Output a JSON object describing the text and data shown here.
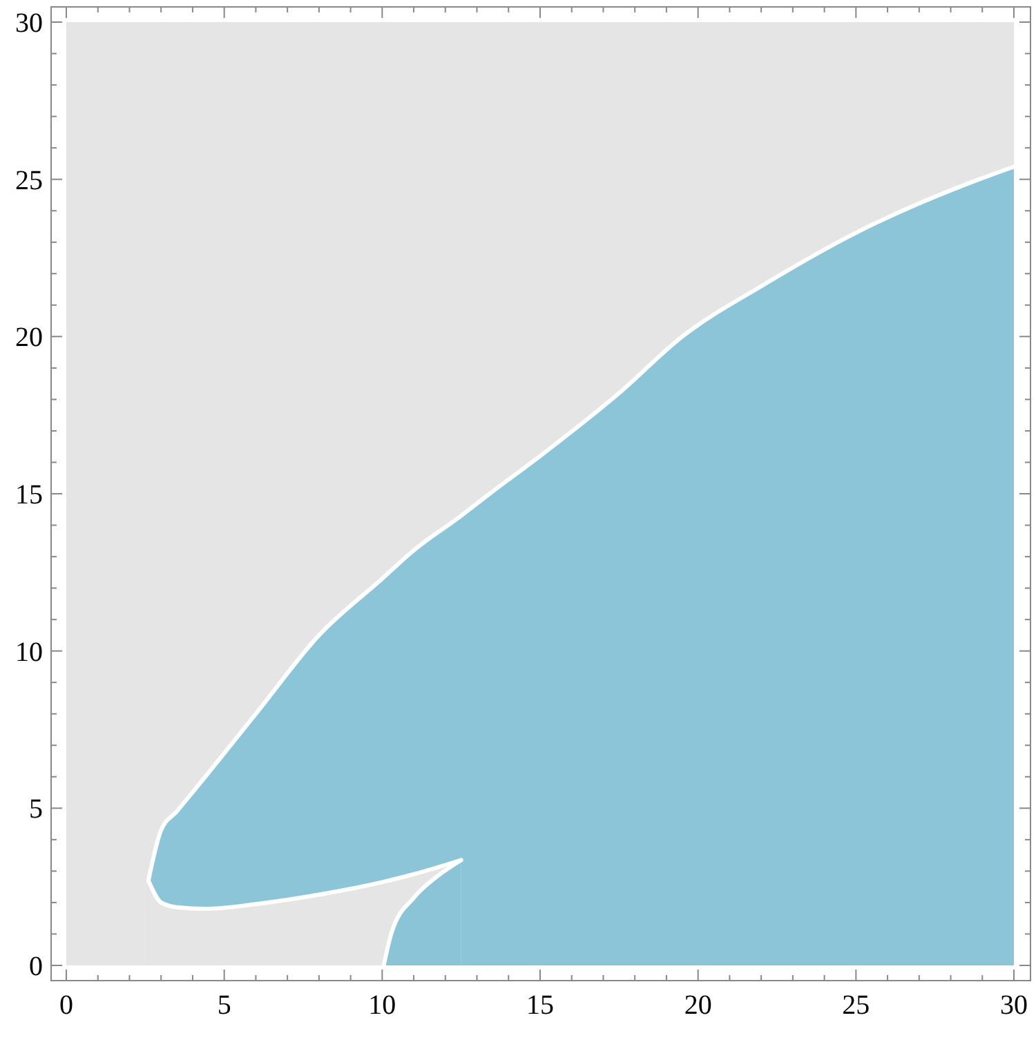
{
  "chart_data": {
    "type": "area",
    "xlim": [
      0,
      30
    ],
    "ylim": [
      0,
      30
    ],
    "xticks": [
      0,
      {
        "value": 1,
        "label": null
      },
      {
        "value": 2,
        "label": null
      },
      {
        "value": 3,
        "label": null
      },
      {
        "value": 4,
        "label": null
      },
      5,
      {
        "value": 6,
        "label": null
      },
      {
        "value": 7,
        "label": null
      },
      {
        "value": 8,
        "label": null
      },
      {
        "value": 9,
        "label": null
      },
      10,
      {
        "value": 11,
        "label": null
      },
      {
        "value": 12,
        "label": null
      },
      {
        "value": 13,
        "label": null
      },
      {
        "value": 14,
        "label": null
      },
      15,
      {
        "value": 16,
        "label": null
      },
      {
        "value": 17,
        "label": null
      },
      {
        "value": 18,
        "label": null
      },
      {
        "value": 19,
        "label": null
      },
      20,
      {
        "value": 21,
        "label": null
      },
      {
        "value": 22,
        "label": null
      },
      {
        "value": 23,
        "label": null
      },
      {
        "value": 24,
        "label": null
      },
      25,
      {
        "value": 26,
        "label": null
      },
      {
        "value": 27,
        "label": null
      },
      {
        "value": 28,
        "label": null
      },
      {
        "value": 29,
        "label": null
      },
      30
    ],
    "yticks": [
      0,
      {
        "value": 1,
        "label": null
      },
      {
        "value": 2,
        "label": null
      },
      {
        "value": 3,
        "label": null
      },
      {
        "value": 4,
        "label": null
      },
      5,
      {
        "value": 6,
        "label": null
      },
      {
        "value": 7,
        "label": null
      },
      {
        "value": 8,
        "label": null
      },
      {
        "value": 9,
        "label": null
      },
      10,
      {
        "value": 11,
        "label": null
      },
      {
        "value": 12,
        "label": null
      },
      {
        "value": 13,
        "label": null
      },
      {
        "value": 14,
        "label": null
      },
      15,
      {
        "value": 16,
        "label": null
      },
      {
        "value": 17,
        "label": null
      },
      {
        "value": 18,
        "label": null
      },
      {
        "value": 19,
        "label": null
      },
      20,
      {
        "value": 21,
        "label": null
      },
      {
        "value": 22,
        "label": null
      },
      {
        "value": 23,
        "label": null
      },
      {
        "value": 24,
        "label": null
      },
      25,
      {
        "value": 26,
        "label": null
      },
      {
        "value": 27,
        "label": null
      },
      {
        "value": 28,
        "label": null
      },
      {
        "value": 29,
        "label": null
      },
      30
    ],
    "grid": false,
    "series": [
      {
        "color": "#8cc4d8",
        "x": [
          2.6,
          3,
          3.5,
          4.4,
          6,
          8,
          10,
          11,
          12.5,
          13.4,
          15,
          17.5,
          19.5,
          22,
          25,
          28.9,
          30
        ],
        "values": [
          2.7,
          4.3,
          4.9,
          6.0,
          8.0,
          10.5,
          12.3,
          13.2,
          14.3,
          15,
          16.2,
          18.2,
          20,
          21.6,
          23.3,
          25,
          25.4
        ]
      },
      {
        "color": "#e5e5e5",
        "x": [
          2.6,
          3,
          3.5,
          4.4,
          6,
          8,
          10,
          11,
          12.5
        ],
        "values": [
          2.7,
          2.0,
          1.85,
          1.8,
          1.95,
          2.25,
          2.65,
          2.9,
          3.35
        ]
      },
      {
        "color": "#8bc3d7",
        "x": [
          10.05,
          10.3,
          11,
          11.7,
          12.5
        ],
        "values": [
          0,
          1.05,
          2.15,
          2.8,
          3.35
        ]
      }
    ]
  }
}
